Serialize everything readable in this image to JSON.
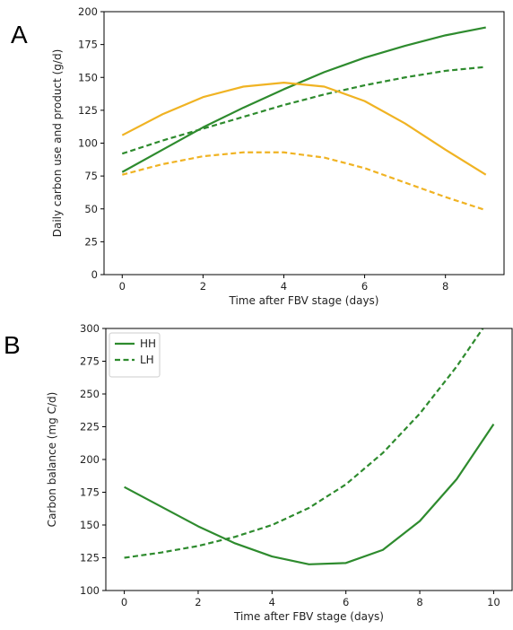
{
  "chart_data": [
    {
      "panel_label": "A",
      "type": "line",
      "title": "",
      "xlabel": "Time after FBV stage (days)",
      "ylabel": "Daily carbon use and product (g/d)",
      "xlim": [
        -0.45,
        9.45
      ],
      "ylim": [
        0,
        200
      ],
      "xticks": [
        0,
        2,
        4,
        6,
        8
      ],
      "yticks": [
        0,
        25,
        50,
        75,
        100,
        125,
        150,
        175,
        200
      ],
      "grid": false,
      "legend": null,
      "x": [
        0,
        1,
        2,
        3,
        4,
        5,
        6,
        7,
        8,
        9
      ],
      "series": [
        {
          "color": "#2e8b2e",
          "style": "solid",
          "values": [
            78,
            95,
            112,
            127,
            141,
            154,
            165,
            174,
            182,
            188
          ]
        },
        {
          "color": "#2e8b2e",
          "style": "dashed",
          "values": [
            92,
            102,
            111,
            120,
            129,
            137,
            144,
            150,
            155,
            158
          ]
        },
        {
          "color": "#f0b323",
          "style": "solid",
          "values": [
            106,
            122,
            135,
            143,
            146,
            143,
            132,
            115,
            95,
            76
          ]
        },
        {
          "color": "#f0b323",
          "style": "dashed",
          "values": [
            76,
            84,
            90,
            93,
            93,
            89,
            81,
            70,
            59,
            49
          ]
        }
      ]
    },
    {
      "panel_label": "B",
      "type": "line",
      "title": "",
      "xlabel": "Time after FBV stage (days)",
      "ylabel": "Carbon balance (mg C/d)",
      "xlim": [
        -0.5,
        10.5
      ],
      "ylim": [
        100,
        300
      ],
      "xticks": [
        0,
        2,
        4,
        6,
        8,
        10
      ],
      "yticks": [
        100,
        125,
        150,
        175,
        200,
        225,
        250,
        275,
        300
      ],
      "grid": false,
      "legend": "top-left",
      "x": [
        0,
        1,
        2,
        3,
        4,
        5,
        6,
        7,
        8,
        9,
        10
      ],
      "series": [
        {
          "name": "HH",
          "color": "#2e8b2e",
          "style": "solid",
          "values": [
            179,
            164,
            149,
            136,
            126,
            120,
            121,
            131,
            153,
            185,
            227
          ]
        },
        {
          "name": "LH",
          "color": "#2e8b2e",
          "style": "dashed",
          "values": [
            125,
            129,
            134,
            141,
            150,
            163,
            181,
            205,
            235,
            271,
            312
          ]
        }
      ]
    }
  ]
}
